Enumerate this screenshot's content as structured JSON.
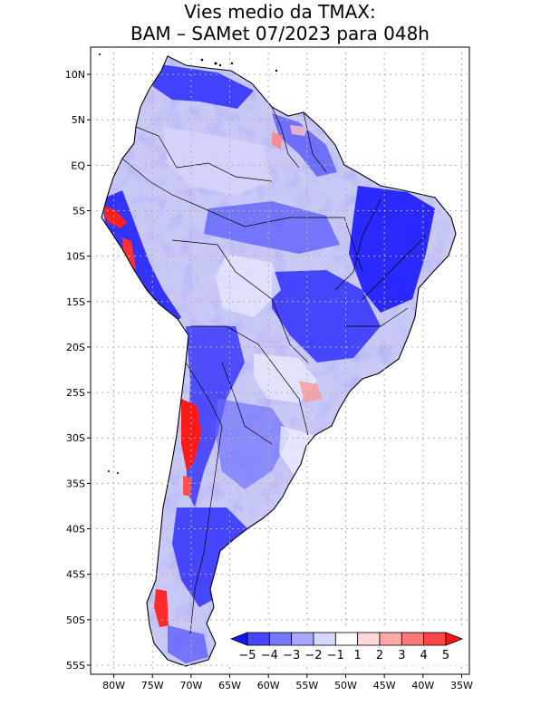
{
  "title": {
    "line1": "Vies medio da TMAX:",
    "line2": "BAM – SAMet 07/2023  para 048h"
  },
  "lat_labels": [
    "10N",
    "5N",
    "EQ",
    "5S",
    "10S",
    "15S",
    "20S",
    "25S",
    "30S",
    "35S",
    "40S",
    "45S",
    "50S",
    "55S"
  ],
  "lat_values": [
    10,
    5,
    0,
    -5,
    -10,
    -15,
    -20,
    -25,
    -30,
    -35,
    -40,
    -45,
    -50,
    -55
  ],
  "lon_labels": [
    "80W",
    "75W",
    "70W",
    "65W",
    "60W",
    "55W",
    "50W",
    "45W",
    "40W",
    "35W"
  ],
  "lon_values": [
    -80,
    -75,
    -70,
    -65,
    -60,
    -55,
    -50,
    -45,
    -40,
    -35
  ],
  "extent": {
    "lon_min": -83,
    "lon_max": -34,
    "lat_min": -56,
    "lat_max": 13
  },
  "colorbar": {
    "labels": [
      "−5",
      "−4",
      "−3",
      "−2",
      "−1",
      "1",
      "2",
      "3",
      "4",
      "5"
    ],
    "colors": [
      "#1414ff",
      "#4646ff",
      "#7878ff",
      "#a8a8ff",
      "#d8d8ff",
      "#ffffff",
      "#ffd8d8",
      "#ffa8a8",
      "#ff7878",
      "#ff4646",
      "#ff1414"
    ]
  },
  "colors": {
    "grid": "#b0b0b0",
    "coast": "#000000",
    "land_base": "#c9c9f6"
  }
}
